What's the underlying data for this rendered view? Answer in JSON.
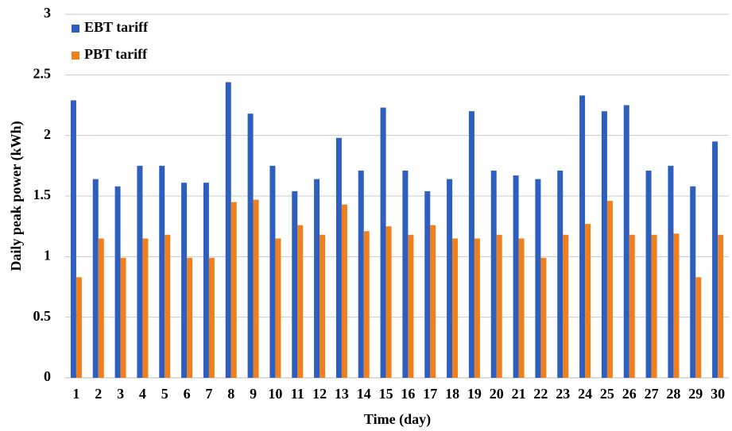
{
  "chart_data": {
    "type": "bar",
    "x_label": "Time (day)",
    "y_label": "Daily peak power (kWh)",
    "categories": [
      "1",
      "2",
      "3",
      "4",
      "5",
      "6",
      "7",
      "8",
      "9",
      "10",
      "11",
      "12",
      "13",
      "14",
      "15",
      "16",
      "17",
      "18",
      "19",
      "20",
      "21",
      "22",
      "23",
      "24",
      "25",
      "26",
      "27",
      "28",
      "29",
      "30"
    ],
    "series": [
      {
        "name": "EBT tariff",
        "color": "#2e5fbe",
        "values": [
          2.29,
          1.64,
          1.58,
          1.75,
          1.75,
          1.61,
          1.61,
          2.44,
          2.18,
          1.75,
          1.54,
          1.64,
          1.98,
          1.71,
          2.23,
          1.71,
          1.54,
          1.64,
          2.2,
          1.71,
          1.67,
          1.64,
          1.71,
          2.33,
          2.2,
          2.25,
          1.71,
          1.75,
          1.58,
          1.95
        ]
      },
      {
        "name": "PBT tariff",
        "color": "#f07f1e",
        "values": [
          0.83,
          1.15,
          0.99,
          1.15,
          1.18,
          0.99,
          0.99,
          1.45,
          1.47,
          1.15,
          1.26,
          1.18,
          1.43,
          1.21,
          1.25,
          1.18,
          1.26,
          1.15,
          1.15,
          1.18,
          1.15,
          0.99,
          1.18,
          1.27,
          1.46,
          1.18,
          1.18,
          1.19,
          0.83,
          1.18
        ]
      }
    ],
    "ylim": [
      0,
      3
    ],
    "yticks": [
      0,
      0.5,
      1,
      1.5,
      2,
      2.5,
      3
    ],
    "grid": true,
    "legend": "top-left"
  }
}
